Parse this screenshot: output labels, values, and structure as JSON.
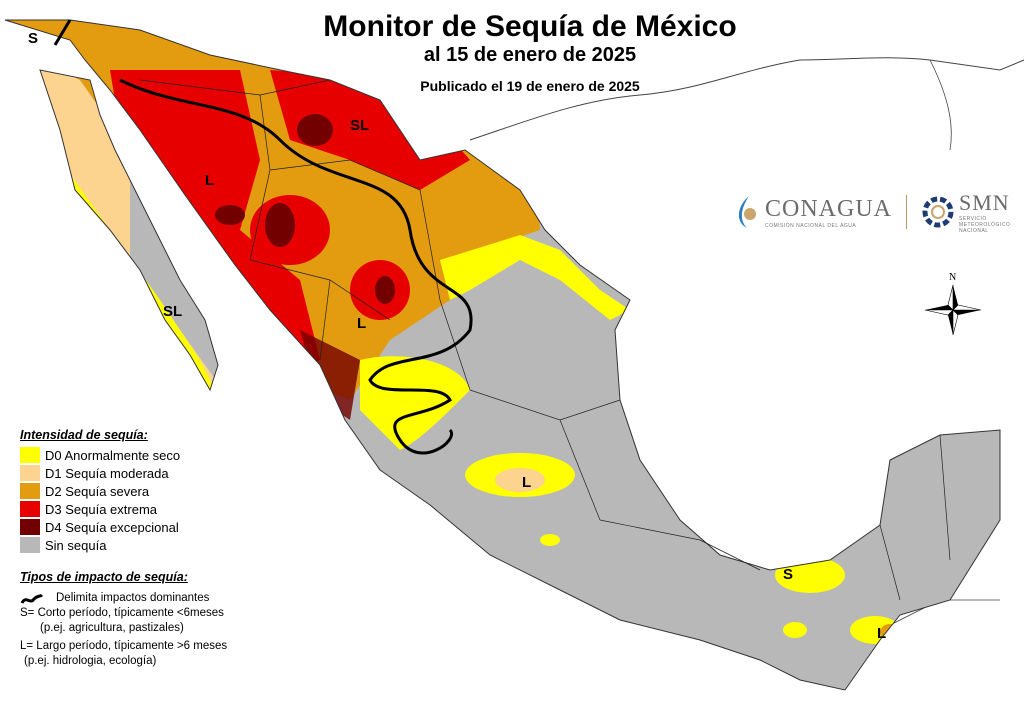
{
  "title": "Monitor de Sequía de México",
  "subtitle": "al 15 de enero de 2025",
  "published": "Publicado el 19 de enero de 2025",
  "legend": {
    "heading": "Intensidad de sequía:",
    "items": [
      {
        "label": "D0 Anormalmente seco",
        "color": "#ffff00"
      },
      {
        "label": "D1 Sequía moderada",
        "color": "#fcd38f"
      },
      {
        "label": "D2 Sequía severa",
        "color": "#e39b0f"
      },
      {
        "label": "D3 Sequía extrema",
        "color": "#e60000"
      },
      {
        "label": "D4 Sequía excepcional",
        "color": "#730000"
      },
      {
        "label": "Sin sequía",
        "color": "#b8b8b8"
      }
    ]
  },
  "impact": {
    "heading": "Tipos de impacto de sequía:",
    "line": "Delimita impactos dominantes",
    "s1": "S= Corto período, típicamente <6meses",
    "s2": "(p.ej. agricultura, pastizales)",
    "l1": "L= Largo período, típicamente >6 meses",
    "l2": "(p.ej. hidrologia, ecología)"
  },
  "map_labels": {
    "s_nw": "S",
    "l_son": "L",
    "sl_chih": "SL",
    "sl_bcs": "SL",
    "l_dgo": "L",
    "l_center": "L",
    "s_yuc": "S",
    "l_qroo": "L",
    "north": "N"
  },
  "logos": {
    "conagua": "CONAGUA",
    "conagua_sub": "COMISIÓN NACIONAL DEL AGUA",
    "smn": "SMN",
    "smn_sub": "SERVICIO METEOROLÓGICO NACIONAL"
  }
}
